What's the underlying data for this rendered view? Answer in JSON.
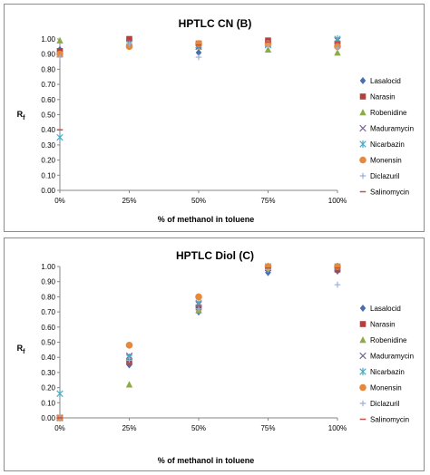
{
  "colors": {
    "Lasalocid": "#4a6fb1",
    "Narasin": "#b0413e",
    "Robenidine": "#8fab48",
    "Maduramycin": "#7d6595",
    "Nicarbazin": "#4bacc6",
    "Monensin": "#e8883a",
    "Diclazuril": "#98b1d6",
    "Salinomycin": "#c0504d"
  },
  "chart_data": [
    {
      "type": "scatter",
      "title": "HPTLC CN (B)",
      "xlabel": "% of methanol in toluene",
      "ylabel_main": "R",
      "ylabel_sub": "f",
      "categories": [
        "0%",
        "25%",
        "50%",
        "75%",
        "100%"
      ],
      "ylim": [
        0,
        1
      ],
      "yticks": [
        "0.00",
        "0.10",
        "0.20",
        "0.30",
        "0.40",
        "0.50",
        "0.60",
        "0.70",
        "0.80",
        "0.90",
        "1.00"
      ],
      "legend_position": "right",
      "series": [
        {
          "name": "Lasalocid",
          "marker": "diamond",
          "values": [
            0.93,
            0.99,
            0.91,
            0.98,
            0.97
          ]
        },
        {
          "name": "Narasin",
          "marker": "square",
          "values": [
            0.92,
            1.0,
            0.97,
            0.99,
            0.97
          ]
        },
        {
          "name": "Robenidine",
          "marker": "triangle",
          "values": [
            0.99,
            0.97,
            0.95,
            0.93,
            0.91
          ]
        },
        {
          "name": "Maduramycin",
          "marker": "x",
          "values": [
            0.9,
            0.98,
            0.95,
            0.97,
            0.99
          ]
        },
        {
          "name": "Nicarbazin",
          "marker": "star",
          "values": [
            0.35,
            0.97,
            0.96,
            0.96,
            1.0
          ]
        },
        {
          "name": "Monensin",
          "marker": "circle",
          "values": [
            0.9,
            0.95,
            0.97,
            0.97,
            0.95
          ]
        },
        {
          "name": "Diclazuril",
          "marker": "plus",
          "values": [
            0.88,
            0.97,
            0.88,
            0.96,
            0.94
          ]
        },
        {
          "name": "Salinomycin",
          "marker": "dash",
          "values": [
            0.4,
            0.99,
            0.96,
            0.98,
            0.98
          ]
        }
      ]
    },
    {
      "type": "scatter",
      "title": "HPTLC Diol (C)",
      "xlabel": "% of methanol in toluene",
      "ylabel_main": "R",
      "ylabel_sub": "f",
      "categories": [
        "0%",
        "25%",
        "50%",
        "75%",
        "100%"
      ],
      "ylim": [
        0,
        1
      ],
      "yticks": [
        "0.00",
        "0.10",
        "0.20",
        "0.30",
        "0.40",
        "0.50",
        "0.60",
        "0.70",
        "0.80",
        "0.90",
        "1.00"
      ],
      "legend_position": "right",
      "series": [
        {
          "name": "Lasalocid",
          "marker": "diamond",
          "values": [
            0.0,
            0.35,
            0.7,
            0.96,
            0.97
          ]
        },
        {
          "name": "Narasin",
          "marker": "square",
          "values": [
            0.0,
            0.37,
            0.73,
            0.99,
            0.98
          ]
        },
        {
          "name": "Robenidine",
          "marker": "triangle",
          "values": [
            0.0,
            0.22,
            0.71,
            0.99,
            1.0
          ]
        },
        {
          "name": "Maduramycin",
          "marker": "x",
          "values": [
            0.0,
            0.41,
            0.75,
            0.99,
            0.99
          ]
        },
        {
          "name": "Nicarbazin",
          "marker": "star",
          "values": [
            0.16,
            0.4,
            0.76,
            1.0,
            1.0
          ]
        },
        {
          "name": "Monensin",
          "marker": "circle",
          "values": [
            0.0,
            0.48,
            0.8,
            1.0,
            1.0
          ]
        },
        {
          "name": "Diclazuril",
          "marker": "plus",
          "values": [
            0.0,
            0.38,
            0.72,
            0.98,
            0.88
          ]
        },
        {
          "name": "Salinomycin",
          "marker": "dash",
          "values": [
            0.0,
            0.36,
            0.74,
            0.99,
            0.99
          ]
        }
      ]
    }
  ]
}
